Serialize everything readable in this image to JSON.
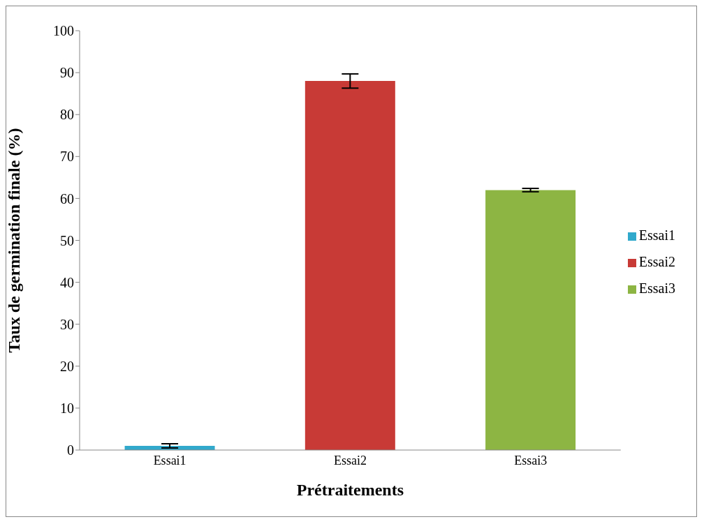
{
  "chart_data": {
    "type": "bar",
    "xlabel": "Prétraitements",
    "ylabel": "Taux de germination finale (%)",
    "categories": [
      "Essai1",
      "Essai2",
      "Essai3"
    ],
    "series": [
      {
        "name": "Essai1",
        "color": "#31a9cc",
        "values": [
          1,
          null,
          null
        ],
        "errors": [
          0.5,
          null,
          null
        ]
      },
      {
        "name": "Essai2",
        "color": "#c83a36",
        "values": [
          null,
          88,
          null
        ],
        "errors": [
          null,
          1.7,
          null
        ]
      },
      {
        "name": "Essai3",
        "color": "#8db543",
        "values": [
          null,
          null,
          62
        ],
        "errors": [
          null,
          null,
          0.4
        ]
      }
    ],
    "stacked": true,
    "ylim": [
      0,
      100
    ],
    "yticks": [
      0,
      10,
      20,
      30,
      40,
      50,
      60,
      70,
      80,
      90,
      100
    ],
    "legend": "right"
  }
}
